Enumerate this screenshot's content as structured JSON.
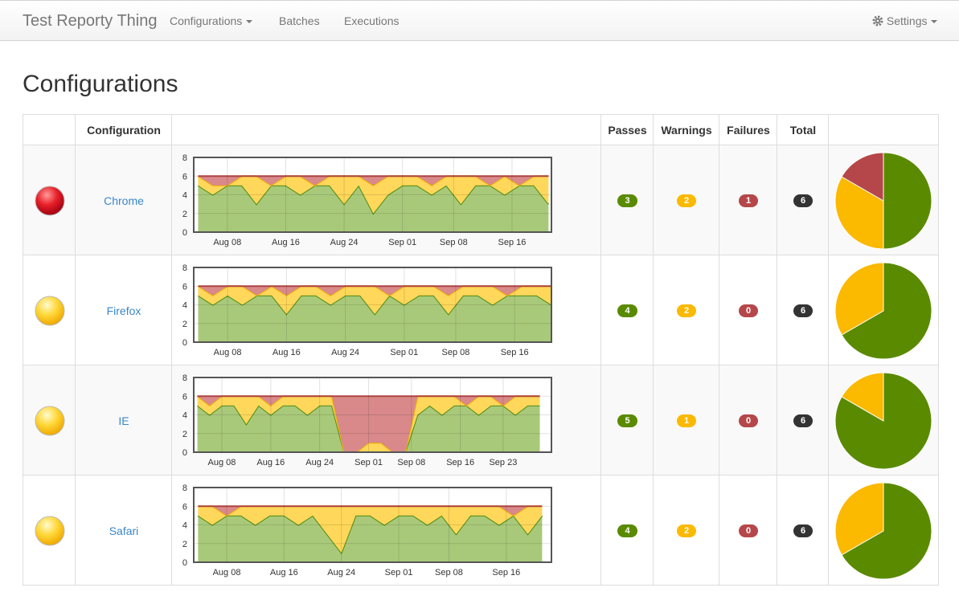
{
  "nav": {
    "brand": "Test Reporty Thing",
    "links": [
      "Configurations",
      "Batches",
      "Executions"
    ],
    "settings": "Settings"
  },
  "page_title": "Configurations",
  "table": {
    "headers": [
      "Configuration",
      "Passes",
      "Warnings",
      "Failures",
      "Total"
    ],
    "colors": {
      "passes": "#5a8a00",
      "warnings": "#fbb900",
      "failures": "#b5474a",
      "total": "#333333"
    },
    "rows": [
      {
        "name": "Chrome",
        "passes": 3,
        "warnings": 2,
        "failures": 1,
        "total": 6,
        "trend": {
          "ylim": [
            0,
            8
          ],
          "yticks": [
            0,
            2,
            4,
            6,
            8
          ],
          "xlim": [
            3.4,
            52.4
          ],
          "xticks": [
            {
              "value": 8,
              "label": "Aug 08"
            },
            {
              "value": 16,
              "label": "Aug 16"
            },
            {
              "value": 24,
              "label": "Aug 24"
            },
            {
              "value": 32,
              "label": "Sep 01"
            },
            {
              "value": 39,
              "label": "Sep 08"
            },
            {
              "value": 47,
              "label": "Sep 16"
            }
          ],
          "x": [
            4,
            6,
            8,
            10,
            12,
            14,
            16,
            18,
            20,
            22,
            24,
            26,
            28,
            30,
            32,
            34,
            36,
            38,
            40,
            42,
            44,
            46,
            48,
            50,
            52
          ],
          "passes": [
            5,
            4,
            5,
            5,
            3,
            5,
            5,
            4,
            5,
            5,
            3,
            5,
            2,
            4,
            5,
            5,
            4,
            5,
            3,
            5,
            5,
            4,
            5,
            5,
            3
          ],
          "warnings": [
            1,
            1,
            0,
            1,
            3,
            0,
            1,
            2,
            0,
            1,
            3,
            1,
            3,
            2,
            1,
            1,
            1,
            1,
            3,
            1,
            0,
            2,
            0,
            1,
            3
          ],
          "failures": [
            0,
            1,
            1,
            0,
            0,
            1,
            0,
            0,
            1,
            0,
            0,
            0,
            1,
            0,
            0,
            0,
            1,
            0,
            0,
            0,
            1,
            0,
            1,
            0,
            0
          ]
        }
      },
      {
        "name": "Firefox",
        "passes": 4,
        "warnings": 2,
        "failures": 0,
        "total": 6,
        "trend": {
          "ylim": [
            0,
            8
          ],
          "yticks": [
            0,
            2,
            4,
            6,
            8
          ],
          "xlim": [
            3.4,
            52.0
          ],
          "xticks": [
            {
              "value": 8,
              "label": "Aug 08"
            },
            {
              "value": 16,
              "label": "Aug 16"
            },
            {
              "value": 24,
              "label": "Aug 24"
            },
            {
              "value": 32,
              "label": "Sep 01"
            },
            {
              "value": 39,
              "label": "Sep 08"
            },
            {
              "value": 47,
              "label": "Sep 16"
            }
          ],
          "x": [
            4,
            6,
            8,
            10,
            12,
            14,
            16,
            18,
            20,
            22,
            24,
            26,
            28,
            30,
            32,
            34,
            36,
            38,
            40,
            42,
            44,
            46,
            48,
            50,
            52
          ],
          "passes": [
            5,
            4,
            5,
            4,
            5,
            5,
            3,
            5,
            5,
            4,
            5,
            5,
            3,
            5,
            4,
            5,
            5,
            3,
            5,
            5,
            4,
            5,
            5,
            5,
            4
          ],
          "warnings": [
            1,
            1,
            1,
            2,
            0,
            1,
            2,
            1,
            1,
            1,
            1,
            1,
            3,
            0,
            2,
            1,
            1,
            2,
            1,
            1,
            2,
            0,
            1,
            1,
            2
          ],
          "failures": [
            0,
            1,
            0,
            0,
            1,
            0,
            1,
            0,
            0,
            1,
            0,
            0,
            0,
            1,
            0,
            0,
            0,
            1,
            0,
            0,
            0,
            1,
            0,
            0,
            0
          ]
        }
      },
      {
        "name": "IE",
        "passes": 5,
        "warnings": 1,
        "failures": 0,
        "total": 6,
        "trend": {
          "ylim": [
            0,
            8
          ],
          "yticks": [
            0,
            2,
            4,
            6,
            8
          ],
          "xlim": [
            3.4,
            61.9
          ],
          "xticks": [
            {
              "value": 8,
              "label": "Aug 08"
            },
            {
              "value": 16,
              "label": "Aug 16"
            },
            {
              "value": 24,
              "label": "Aug 24"
            },
            {
              "value": 32,
              "label": "Sep 01"
            },
            {
              "value": 39,
              "label": "Sep 08"
            },
            {
              "value": 47,
              "label": "Sep 16"
            },
            {
              "value": 54,
              "label": "Sep 23"
            }
          ],
          "x": [
            4,
            6,
            8,
            10,
            12,
            14,
            16,
            18,
            20,
            22,
            24,
            26,
            28,
            30,
            32,
            34,
            36,
            38,
            40,
            42,
            44,
            46,
            48,
            50,
            52,
            54,
            56,
            58,
            60
          ],
          "passes": [
            5,
            4,
            5,
            5,
            3,
            5,
            4,
            5,
            5,
            4,
            5,
            5,
            0,
            0,
            0,
            0,
            0,
            0,
            4,
            5,
            4,
            5,
            5,
            4,
            5,
            5,
            4,
            5,
            5
          ],
          "warnings": [
            1,
            1,
            1,
            1,
            3,
            1,
            1,
            1,
            1,
            2,
            1,
            1,
            0,
            0,
            1,
            1,
            0,
            0,
            2,
            1,
            2,
            1,
            0,
            2,
            1,
            0,
            2,
            1,
            1
          ],
          "failures": [
            0,
            1,
            0,
            0,
            0,
            0,
            1,
            0,
            0,
            0,
            0,
            0,
            6,
            6,
            5,
            5,
            6,
            6,
            0,
            0,
            0,
            0,
            1,
            0,
            0,
            1,
            0,
            0,
            0
          ]
        }
      },
      {
        "name": "Safari",
        "passes": 4,
        "warnings": 2,
        "failures": 0,
        "total": 6,
        "trend": {
          "ylim": [
            0,
            8
          ],
          "yticks": [
            0,
            2,
            4,
            6,
            8
          ],
          "xlim": [
            3.4,
            53.3
          ],
          "xticks": [
            {
              "value": 8,
              "label": "Aug 08"
            },
            {
              "value": 16,
              "label": "Aug 16"
            },
            {
              "value": 24,
              "label": "Aug 24"
            },
            {
              "value": 32,
              "label": "Sep 01"
            },
            {
              "value": 39,
              "label": "Sep 08"
            },
            {
              "value": 47,
              "label": "Sep 16"
            }
          ],
          "x": [
            4,
            6,
            8,
            10,
            12,
            14,
            16,
            18,
            20,
            22,
            24,
            26,
            28,
            30,
            32,
            34,
            36,
            38,
            40,
            42,
            44,
            46,
            48,
            50,
            52
          ],
          "passes": [
            5,
            4,
            5,
            5,
            4,
            5,
            5,
            4,
            5,
            3,
            1,
            5,
            5,
            4,
            5,
            5,
            4,
            5,
            3,
            5,
            5,
            4,
            5,
            3,
            5
          ],
          "warnings": [
            1,
            2,
            0,
            1,
            2,
            1,
            1,
            2,
            1,
            3,
            5,
            1,
            1,
            2,
            1,
            1,
            2,
            1,
            3,
            1,
            1,
            2,
            0,
            3,
            1
          ],
          "failures": [
            0,
            0,
            1,
            0,
            0,
            0,
            0,
            0,
            0,
            0,
            0,
            0,
            0,
            0,
            0,
            0,
            0,
            0,
            0,
            0,
            0,
            0,
            1,
            0,
            0
          ]
        }
      }
    ]
  }
}
